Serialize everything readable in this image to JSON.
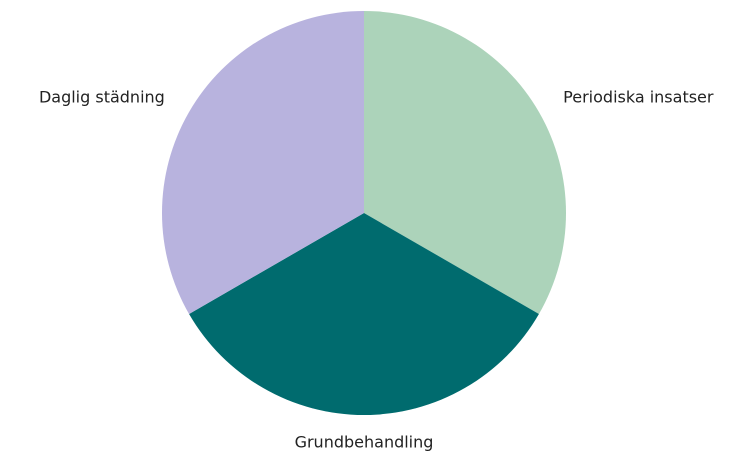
{
  "chart_data": {
    "type": "pie",
    "categories": [
      "Periodiska insatser",
      "Grundbehandling",
      "Daglig städning"
    ],
    "values": [
      33.33,
      33.33,
      33.33
    ],
    "colors": [
      "#acd3ba",
      "#006b6e",
      "#b8b3de"
    ]
  }
}
